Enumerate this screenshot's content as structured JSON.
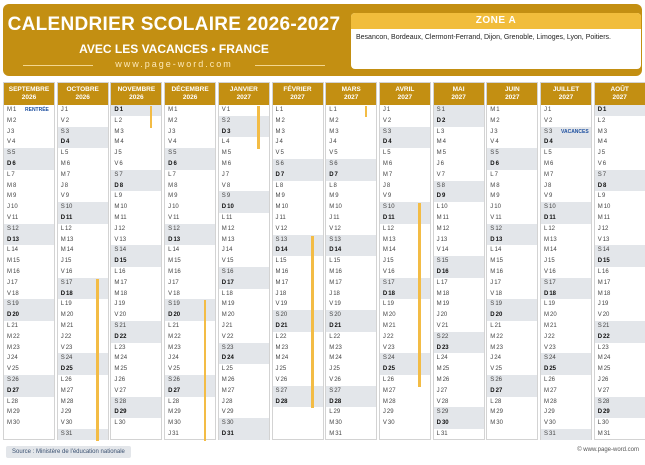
{
  "header": {
    "title": "CALENDRIER SCOLAIRE 2026-2027",
    "subtitle": "AVEC LES VACANCES • FRANCE",
    "site": "www.page-word.com"
  },
  "zone": {
    "title": "ZONE A",
    "cities": "Besancon, Bordeaux, Clermont-Ferrand, Dijon, Grenoble, Limoges, Lyon, Poitiers."
  },
  "colors": {
    "gold": "#c38f12",
    "vacation": "#f3bc45",
    "weekend": "#e3e6ea",
    "note": "#1e50a0"
  },
  "day_letters": [
    "D",
    "L",
    "M",
    "M",
    "J",
    "V",
    "S"
  ],
  "months": [
    {
      "name": "SEPTEMBRE",
      "year": "2026",
      "days": 30,
      "start_dow": 2,
      "vac": [],
      "notes": [
        {
          "day": 1,
          "text": "RENTRÉE"
        }
      ]
    },
    {
      "name": "OCTOBRE",
      "year": "2026",
      "days": 31,
      "start_dow": 4,
      "vac": [
        [
          17,
          31
        ]
      ],
      "notes": []
    },
    {
      "name": "NOVEMBRE",
      "year": "2026",
      "days": 30,
      "start_dow": 0,
      "vac": [
        [
          1,
          2
        ]
      ],
      "notes": []
    },
    {
      "name": "DÉCEMBRE",
      "year": "2026",
      "days": 31,
      "start_dow": 2,
      "vac": [
        [
          19,
          31
        ]
      ],
      "notes": []
    },
    {
      "name": "JANVIER",
      "year": "2027",
      "days": 31,
      "start_dow": 5,
      "vac": [
        [
          1,
          4
        ]
      ],
      "notes": []
    },
    {
      "name": "FÉVRIER",
      "year": "2027",
      "days": 28,
      "start_dow": 1,
      "vac": [
        [
          13,
          28
        ]
      ],
      "notes": []
    },
    {
      "name": "MARS",
      "year": "2027",
      "days": 31,
      "start_dow": 1,
      "vac": [
        [
          1,
          1
        ]
      ],
      "notes": []
    },
    {
      "name": "AVRIL",
      "year": "2027",
      "days": 30,
      "start_dow": 4,
      "vac": [
        [
          10,
          26
        ]
      ],
      "notes": []
    },
    {
      "name": "MAI",
      "year": "2027",
      "days": 31,
      "start_dow": 6,
      "vac": [],
      "notes": []
    },
    {
      "name": "JUIN",
      "year": "2027",
      "days": 30,
      "start_dow": 2,
      "vac": [],
      "notes": []
    },
    {
      "name": "JUILLET",
      "year": "2027",
      "days": 31,
      "start_dow": 4,
      "vac": [],
      "notes": [
        {
          "day": 3,
          "text": "VACANCES"
        }
      ]
    },
    {
      "name": "AOÛT",
      "year": "2027",
      "days": 31,
      "start_dow": 0,
      "vac": [],
      "notes": []
    }
  ],
  "footer": {
    "source": "Source : Ministère de l'éducation nationale",
    "site": "© www.page-word.com"
  }
}
